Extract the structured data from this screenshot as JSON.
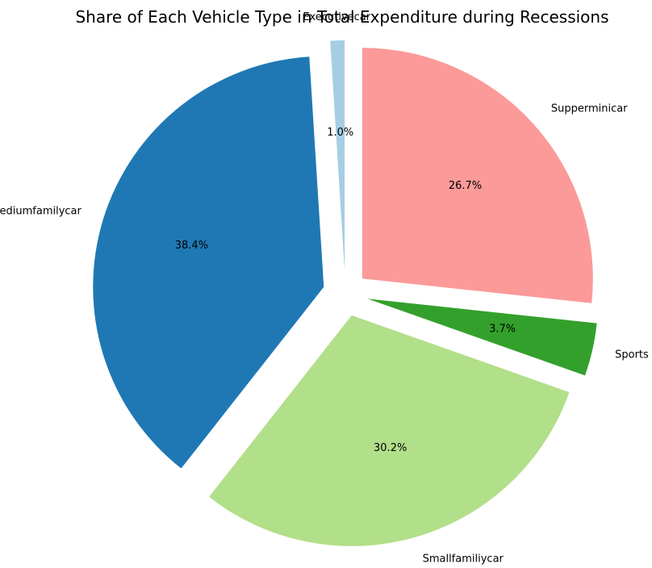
{
  "chart_data": {
    "type": "pie",
    "title": "Share of Each Vehicle Type in Total Expenditure during Recessions",
    "labels": [
      "Executivecar",
      "Mediumfamilycar",
      "Smallfamiliycar",
      "Sports",
      "Supperminicar"
    ],
    "values": [
      1.0,
      38.4,
      30.2,
      3.7,
      26.7
    ],
    "percent_labels": [
      "1.0%",
      "38.4%",
      "30.2%",
      "3.7%",
      "26.7%"
    ],
    "colors": [
      "#a6cee3",
      "#1f78b4",
      "#b2df8a",
      "#33a02c",
      "#fb9a99"
    ],
    "start_angle_deg": 90,
    "direction": "counterclockwise",
    "exploded": true,
    "legend": "none"
  }
}
